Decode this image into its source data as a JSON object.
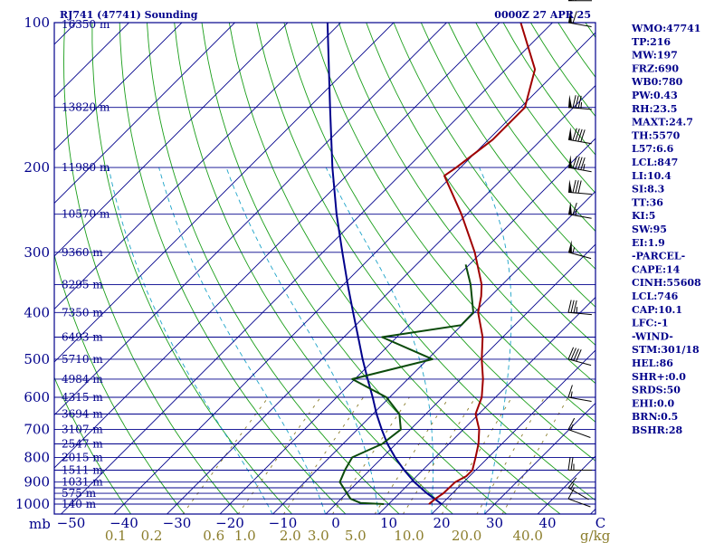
{
  "chart_data": {
    "type": "skew-t sounding",
    "title_left": "RJ741 (47741) Sounding",
    "title_right": "0000Z 27 APR 25",
    "pressure_axis_unit": "mb",
    "mixing_ratio_unit": "g/kg",
    "pressure_labels": [
      100,
      200,
      300,
      400,
      500,
      600,
      700,
      800,
      900,
      1000
    ],
    "isobar_levels": [
      1000,
      975,
      950,
      925,
      900,
      850,
      800,
      750,
      700,
      650,
      600,
      550,
      500,
      450,
      400,
      350,
      300,
      250,
      200,
      150,
      100
    ],
    "temperature_ticks": [
      -50,
      -40,
      -30,
      -20,
      -10,
      0,
      10,
      20,
      30,
      40
    ],
    "temperature_tick_labels": [
      "−50",
      "−40",
      "−30",
      "−20",
      "−10",
      "0",
      "10",
      "20",
      "30",
      "40",
      "C"
    ],
    "mixing_ratio_labels": [
      "0.1",
      "0.2",
      "0.6",
      "1.0",
      "2.0",
      "3.0",
      "5.0",
      "10.0",
      "20.0",
      "40.0"
    ],
    "mixing_ratio_label_values": [
      0.1,
      0.2,
      0.6,
      1.0,
      2.0,
      3.0,
      5.0,
      10.0,
      20.0,
      40.0
    ],
    "mixing_ratio_lines": [
      0.4,
      1,
      2,
      4,
      7,
      10,
      16,
      24,
      32
    ],
    "height_labels": [
      {
        "p": 150,
        "text": "13820 m"
      },
      {
        "p": 200,
        "text": "11980 m"
      },
      {
        "p": 250,
        "text": "10570 m"
      },
      {
        "p": 300,
        "text": "9360 m"
      },
      {
        "p": 350,
        "text": "8295 m"
      },
      {
        "p": 400,
        "text": "7350 m"
      },
      {
        "p": 450,
        "text": "6493 m"
      },
      {
        "p": 500,
        "text": "5710 m"
      },
      {
        "p": 550,
        "text": "4984 m"
      },
      {
        "p": 600,
        "text": "4315 m"
      },
      {
        "p": 650,
        "text": "3694 m"
      },
      {
        "p": 700,
        "text": "3107 m"
      },
      {
        "p": 750,
        "text": "2547 m"
      },
      {
        "p": 800,
        "text": "2015 m"
      },
      {
        "p": 850,
        "text": "1511 m"
      },
      {
        "p": 900,
        "text": "1031 m"
      },
      {
        "p": 950,
        "text": "575 m"
      },
      {
        "p": 1000,
        "text": "140 m"
      }
    ],
    "top_height_label": "16350 m",
    "temperature_profile": [
      {
        "p": 1000,
        "t": 17.6
      },
      {
        "p": 975,
        "t": 17.8
      },
      {
        "p": 950,
        "t": 18.3
      },
      {
        "p": 900,
        "t": 18.4
      },
      {
        "p": 875,
        "t": 19.4
      },
      {
        "p": 850,
        "t": 19.4
      },
      {
        "p": 800,
        "t": 17.6
      },
      {
        "p": 750,
        "t": 15.6
      },
      {
        "p": 700,
        "t": 13.0
      },
      {
        "p": 650,
        "t": 9.4
      },
      {
        "p": 600,
        "t": 7.4
      },
      {
        "p": 550,
        "t": 4.2
      },
      {
        "p": 500,
        "t": 0.2
      },
      {
        "p": 450,
        "t": -3.8
      },
      {
        "p": 400,
        "t": -9.3
      },
      {
        "p": 370,
        "t": -11.8
      },
      {
        "p": 350,
        "t": -13.9
      },
      {
        "p": 300,
        "t": -21.3
      },
      {
        "p": 250,
        "t": -31.0
      },
      {
        "p": 208,
        "t": -41.5
      },
      {
        "p": 200,
        "t": -40.8
      },
      {
        "p": 175,
        "t": -39.2
      },
      {
        "p": 150,
        "t": -39.2
      },
      {
        "p": 125,
        "t": -44.5
      },
      {
        "p": 100,
        "t": -56.0
      },
      {
        "p": 92,
        "t": -62.0
      }
    ],
    "dewpoint_profile": [
      {
        "p": 1000,
        "td": 9.1
      },
      {
        "p": 995,
        "td": 4.5
      },
      {
        "p": 975,
        "td": 1.8
      },
      {
        "p": 950,
        "td": 0.1
      },
      {
        "p": 900,
        "td": -3.4
      },
      {
        "p": 850,
        "td": -4.7
      },
      {
        "p": 800,
        "td": -5.7
      },
      {
        "p": 750,
        "td": -2.6
      },
      {
        "p": 700,
        "td": -1.8
      },
      {
        "p": 650,
        "td": -5.0
      },
      {
        "p": 600,
        "td": -10.6
      },
      {
        "p": 550,
        "td": -20.5
      },
      {
        "p": 500,
        "td": -9.1
      },
      {
        "p": 450,
        "td": -22.8
      },
      {
        "p": 425,
        "td": -10.1
      },
      {
        "p": 400,
        "td": -10.2
      },
      {
        "p": 350,
        "td": -16.0
      },
      {
        "p": 318,
        "td": -20.7
      }
    ],
    "parcel_path": [
      {
        "p": 1000,
        "t": 20.0
      },
      {
        "p": 950,
        "t": 15.2
      },
      {
        "p": 900,
        "t": 10.7
      },
      {
        "p": 850,
        "t": 6.5
      },
      {
        "p": 800,
        "t": 2.4
      },
      {
        "p": 750,
        "t": -1.6
      },
      {
        "p": 700,
        "t": -5.4
      },
      {
        "p": 650,
        "t": -9.3
      },
      {
        "p": 600,
        "t": -13.2
      },
      {
        "p": 550,
        "t": -17.6
      },
      {
        "p": 500,
        "t": -22.3
      },
      {
        "p": 450,
        "t": -27.3
      },
      {
        "p": 400,
        "t": -32.9
      },
      {
        "p": 350,
        "t": -39.2
      },
      {
        "p": 300,
        "t": -46.3
      },
      {
        "p": 250,
        "t": -54.6
      },
      {
        "p": 200,
        "t": -64.2
      },
      {
        "p": 150,
        "t": -76.0
      },
      {
        "p": 100,
        "t": -92.5
      },
      {
        "p": 90,
        "t": -97.0
      }
    ],
    "wind_barbs": [
      {
        "p": 90,
        "dir": 270,
        "speed": 70
      },
      {
        "p": 100,
        "dir": 280,
        "speed": 60
      },
      {
        "p": 150,
        "dir": 275,
        "speed": 85
      },
      {
        "p": 175,
        "dir": 280,
        "speed": 90
      },
      {
        "p": 200,
        "dir": 280,
        "speed": 95
      },
      {
        "p": 225,
        "dir": 275,
        "speed": 80
      },
      {
        "p": 250,
        "dir": 280,
        "speed": 65
      },
      {
        "p": 300,
        "dir": 285,
        "speed": 55
      },
      {
        "p": 400,
        "dir": 275,
        "speed": 35
      },
      {
        "p": 500,
        "dir": 285,
        "speed": 40
      },
      {
        "p": 600,
        "dir": 280,
        "speed": 15
      },
      {
        "p": 700,
        "dir": 290,
        "speed": 15
      },
      {
        "p": 850,
        "dir": 270,
        "speed": 25
      },
      {
        "p": 925,
        "dir": 300,
        "speed": 15
      },
      {
        "p": 975,
        "dir": 290,
        "speed": 10
      }
    ],
    "colors": {
      "isobar": "#00008b",
      "isotherm": "#00008b",
      "dry_adiabat": "#1a9e1a",
      "moist_adiabat": "#1ca3c8",
      "mixing_ratio": "#8b7d2b",
      "temperature": "#a00000",
      "dewpoint": "#0b4b0b",
      "parcel": "#00008b",
      "index_text": "#00008b",
      "wind": "#000000"
    }
  },
  "indices": [
    "WMO:47741",
    "TP:216",
    "MW:197",
    "FRZ:690",
    "WB0:780",
    "PW:0.43",
    "RH:23.5",
    "MAXT:24.7",
    "TH:5570",
    "L57:6.6",
    "LCL:847",
    "LI:10.4",
    "SI:8.3",
    "TT:36",
    "KI:5",
    "SW:95",
    "EI:1.9",
    "-PARCEL-",
    "CAPE:14",
    "CINH:55608",
    "LCL:746",
    "CAP:10.1",
    "LFC:-1",
    "-WIND-",
    "STM:301/18",
    "HEL:86",
    "SHR+:0.0",
    "SRDS:50",
    "EHI:0.0",
    "BRN:0.5",
    "BSHR:28"
  ]
}
